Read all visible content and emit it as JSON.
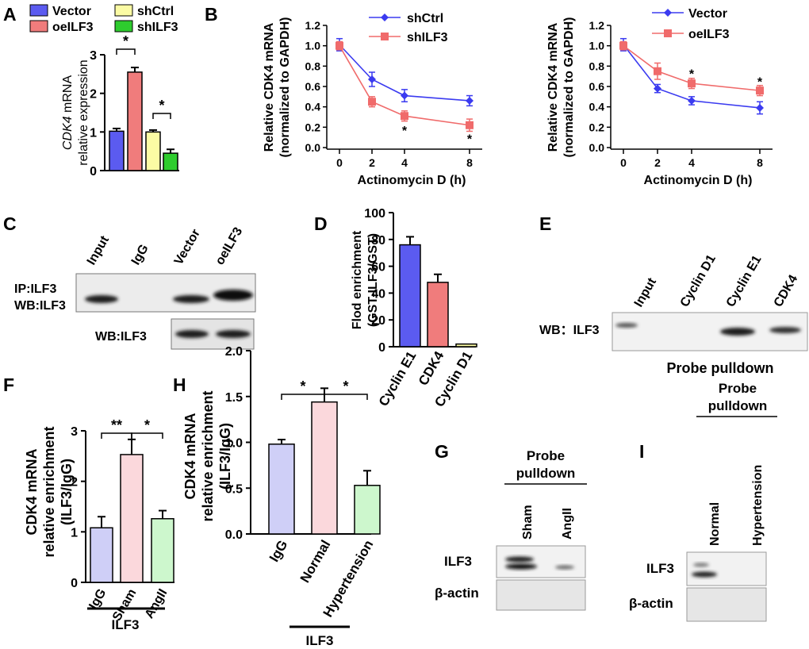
{
  "panel_letters": {
    "A": "A",
    "B": "B",
    "C": "C",
    "D": "D",
    "E": "E",
    "F": "F",
    "G": "G",
    "H": "H",
    "I": "I"
  },
  "colors": {
    "blue": "#5b5bf0",
    "red": "#f07c7c",
    "yellow": "#fbfba4",
    "green": "#2ecc2e",
    "line_blue": "#3b3bf0",
    "line_red": "#f06b6b",
    "lav": "#cfcff7",
    "pink": "#fbd8dc",
    "mint": "#cdf7cd",
    "axis": "#000000"
  },
  "chart_data": [
    {
      "id": "A",
      "type": "bar",
      "categories": [
        "Vector",
        "oeILF3",
        "shCtrl",
        "shILF3"
      ],
      "values": [
        1.02,
        2.55,
        1.0,
        0.45
      ],
      "errors": [
        0.07,
        0.12,
        0.05,
        0.1
      ],
      "colors": [
        "#5b5bf0",
        "#f07c7c",
        "#fbfba4",
        "#2ecc2e"
      ],
      "legend": [
        "Vector",
        "oeILF3",
        "shCtrl",
        "shILF3"
      ],
      "ylabel_italic": "CDK4",
      "ylabel_rest": " mRNA",
      "ylabel2": "relative expression",
      "yticks": [
        "0",
        "1",
        "2",
        "3"
      ],
      "ylim": [
        0,
        3
      ],
      "significance": [
        {
          "from": 0,
          "to": 1,
          "label": "*"
        },
        {
          "from": 2,
          "to": 3,
          "label": "*"
        }
      ]
    },
    {
      "id": "B1",
      "type": "line",
      "x": [
        0,
        2,
        4,
        8
      ],
      "xticks": [
        "0",
        "2",
        "4",
        "8"
      ],
      "xlabel": "Actinomycin D (h)",
      "ylabel": "Relative CDK4 mRNA",
      "ylabel2": "(normalized to GAPDH)",
      "yticks": [
        "0.0",
        "0.2",
        "0.4",
        "0.6",
        "0.8",
        "1.0",
        "1.2"
      ],
      "ylim": [
        0,
        1.2
      ],
      "series": [
        {
          "name": "shCtrl",
          "values": [
            1.01,
            0.67,
            0.51,
            0.46
          ],
          "errors": [
            0.06,
            0.07,
            0.06,
            0.05
          ],
          "color": "#3b3bf0",
          "marker": "diamond"
        },
        {
          "name": "shILF3",
          "values": [
            1.0,
            0.45,
            0.31,
            0.22
          ],
          "errors": [
            0.04,
            0.05,
            0.05,
            0.06
          ],
          "color": "#f06b6b",
          "marker": "square"
        }
      ],
      "annotations": [
        {
          "x": 4,
          "y": 0.17,
          "label": "*"
        },
        {
          "x": 8,
          "y": 0.09,
          "label": "*"
        }
      ]
    },
    {
      "id": "B2",
      "type": "line",
      "x": [
        0,
        2,
        4,
        8
      ],
      "xticks": [
        "0",
        "2",
        "4",
        "8"
      ],
      "xlabel": "Actinomycin D (h)",
      "ylabel": "Relative CDK4 mRNA",
      "ylabel2": "(normalized to GAPDH)",
      "yticks": [
        "0.0",
        "0.2",
        "0.4",
        "0.6",
        "0.8",
        "1.0",
        "1.2"
      ],
      "ylim": [
        0,
        1.2
      ],
      "series": [
        {
          "name": "Vector",
          "values": [
            1.01,
            0.58,
            0.46,
            0.39
          ],
          "errors": [
            0.06,
            0.04,
            0.04,
            0.06
          ],
          "color": "#3b3bf0",
          "marker": "diamond"
        },
        {
          "name": "oeILF3",
          "values": [
            1.0,
            0.75,
            0.63,
            0.56
          ],
          "errors": [
            0.04,
            0.08,
            0.05,
            0.05
          ],
          "color": "#f06b6b",
          "marker": "square"
        }
      ],
      "annotations": [
        {
          "x": 4,
          "y": 0.73,
          "label": "*"
        },
        {
          "x": 8,
          "y": 0.65,
          "label": "*"
        }
      ]
    },
    {
      "id": "D",
      "type": "bar",
      "categories": [
        "Cyclin E1",
        "CDK4",
        "Cyclin D1"
      ],
      "values": [
        76,
        48,
        2
      ],
      "errors": [
        6,
        6,
        0
      ],
      "colors": [
        "#5b5bf0",
        "#f07c7c",
        "#fbfba4"
      ],
      "ylabel": "Flod enrichment",
      "ylabel2": "(GST-ILF3/GST)",
      "yticks": [
        "0",
        "20",
        "40",
        "60",
        "80",
        "100"
      ],
      "ylim": [
        0,
        100
      ]
    },
    {
      "id": "F",
      "type": "bar",
      "categories": [
        "IgG",
        "Sham",
        "AngII"
      ],
      "values": [
        1.08,
        2.53,
        1.26
      ],
      "errors": [
        0.22,
        0.3,
        0.16
      ],
      "colors": [
        "#cfcff7",
        "#fbd8dc",
        "#cdf7cd"
      ],
      "ylabel": "CDK4 mRNA",
      "ylabel2": "relative enrichment",
      "ylabel3": "(ILF3/IgG)",
      "yticks": [
        "0",
        "1",
        "2",
        "3"
      ],
      "ylim": [
        0,
        3
      ],
      "group_label": "ILF3",
      "significance": [
        {
          "from": 0,
          "to": 1,
          "label": "**"
        },
        {
          "from": 1,
          "to": 2,
          "label": "*"
        }
      ]
    },
    {
      "id": "H",
      "type": "bar",
      "categories": [
        "IgG",
        "Normal",
        "Hypertension"
      ],
      "values": [
        0.98,
        1.44,
        0.53
      ],
      "errors": [
        0.05,
        0.15,
        0.16
      ],
      "colors": [
        "#cfcff7",
        "#fbd8dc",
        "#cdf7cd"
      ],
      "ylabel": "CDK4 mRNA",
      "ylabel2": "relative enrichment",
      "ylabel3": "(ILF3/IgG)",
      "yticks": [
        "0.0",
        "0.5",
        "1.0",
        "1.5",
        "2.0"
      ],
      "ylim": [
        0,
        2
      ],
      "group_label": "ILF3",
      "significance": [
        {
          "from": 0,
          "to": 1,
          "label": "*"
        },
        {
          "from": 1,
          "to": 2,
          "label": "*"
        }
      ]
    }
  ],
  "blots": {
    "C": {
      "lanes": [
        "Input",
        "IgG",
        "Vector",
        "oeILF3"
      ],
      "row1_label_a": "IP:ILF3",
      "row1_label_b": "WB:ILF3",
      "row2_label": "WB:ILF3"
    },
    "E": {
      "lanes": [
        "Input",
        "Cyclin D1",
        "Cyclin E1",
        "CDK4"
      ],
      "row_label": "WB：ILF3",
      "caption": "Probe pulldown"
    },
    "G": {
      "header1": "Probe",
      "header2": "pulldown",
      "lanes": [
        "Sham",
        "AngII"
      ],
      "row1": "ILF3",
      "row2": "β-actin"
    },
    "I": {
      "header1": "Probe",
      "header2": "pulldown",
      "lanes": [
        "Normal",
        "Hypertension"
      ],
      "row1": "ILF3",
      "row2": "β-actin"
    }
  }
}
